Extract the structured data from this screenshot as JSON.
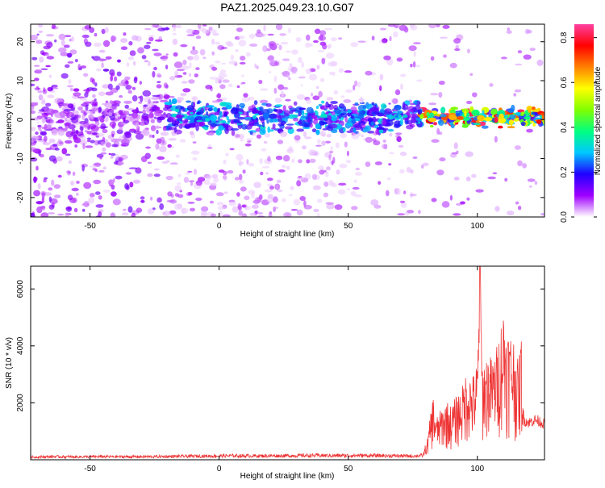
{
  "chart_data": [
    {
      "type": "heatmap",
      "title": "PAZ1.2025.049.23.10.G07",
      "xlabel": "Height of straight line (km)",
      "ylabel": "Frequency (Hz)",
      "xlim": [
        -73,
        126
      ],
      "ylim": [
        -25,
        24.5
      ],
      "xticks": [
        "-50",
        "0",
        "50",
        "100"
      ],
      "yticks": [
        "20",
        "10",
        "0",
        "-10",
        "-20"
      ],
      "grid": false,
      "ridge_center_hz": [
        [
          -73,
          0
        ],
        [
          -50,
          0
        ],
        [
          -25,
          1
        ],
        [
          0,
          0.5
        ],
        [
          25,
          0.5
        ],
        [
          50,
          0.5
        ],
        [
          75,
          0.5
        ],
        [
          80,
          0.5
        ],
        [
          100,
          0.5
        ],
        [
          126,
          0.5
        ]
      ],
      "colorbar": {
        "label": "Normalized spectral amplitude",
        "range": [
          0.0,
          0.86
        ],
        "ticks": [
          "0.0",
          "0.2",
          "0.4",
          "0.6",
          "0.8"
        ],
        "colormap": [
          "#ffffff",
          "#a000ff",
          "#2000ff",
          "#00c8ff",
          "#00ff80",
          "#80ff00",
          "#ffff00",
          "#ff8000",
          "#ff0000",
          "#ff40a0"
        ]
      },
      "color_overview": [
        {
          "x_range_km": [
            -73,
            -20
          ],
          "description_level": "mostly 0.0-0.1 over full band"
        },
        {
          "x_range_km": [
            -20,
            78
          ],
          "description_level": "0.1-0.3 near 0 Hz, speckle elsewhere"
        },
        {
          "x_range_km": [
            78,
            126
          ],
          "description_level": "0.2-0.86 concentrated within +/-3 Hz"
        }
      ]
    },
    {
      "type": "line",
      "title": "",
      "xlabel": "Height of straight line (km)",
      "ylabel": "SNR (10 * v/v)",
      "xlim": [
        -73,
        126
      ],
      "ylim": [
        0,
        6800
      ],
      "xticks": [
        "-50",
        "0",
        "50",
        "100"
      ],
      "yticks": [
        "2000",
        "4000",
        "6000"
      ],
      "grid": false,
      "series": [
        {
          "color": "#ee3333",
          "points": [
            [
              -73,
              90
            ],
            [
              -65,
              110
            ],
            [
              -55,
              100
            ],
            [
              -45,
              110
            ],
            [
              -35,
              105
            ],
            [
              -25,
              110
            ],
            [
              -15,
              120
            ],
            [
              -5,
              130
            ],
            [
              5,
              140
            ],
            [
              15,
              135
            ],
            [
              25,
              140
            ],
            [
              35,
              150
            ],
            [
              45,
              145
            ],
            [
              55,
              150
            ],
            [
              65,
              140
            ],
            [
              75,
              130
            ],
            [
              79,
              150
            ],
            [
              80,
              400
            ],
            [
              81,
              900
            ],
            [
              82,
              1700
            ],
            [
              83,
              2200
            ],
            [
              84,
              1400
            ],
            [
              86,
              1700
            ],
            [
              88,
              2000
            ],
            [
              90,
              1800
            ],
            [
              92,
              2200
            ],
            [
              94,
              2400
            ],
            [
              96,
              3100
            ],
            [
              98,
              2800
            ],
            [
              100,
              3300
            ],
            [
              101,
              6800
            ],
            [
              102,
              3300
            ],
            [
              104,
              3600
            ],
            [
              106,
              3400
            ],
            [
              108,
              4000
            ],
            [
              110,
              5200
            ],
            [
              112,
              4400
            ],
            [
              114,
              4200
            ],
            [
              116,
              3200
            ],
            [
              117,
              4400
            ],
            [
              118,
              1400
            ],
            [
              120,
              1300
            ],
            [
              122,
              1400
            ],
            [
              124,
              1350
            ],
            [
              126,
              1250
            ]
          ]
        }
      ]
    }
  ]
}
